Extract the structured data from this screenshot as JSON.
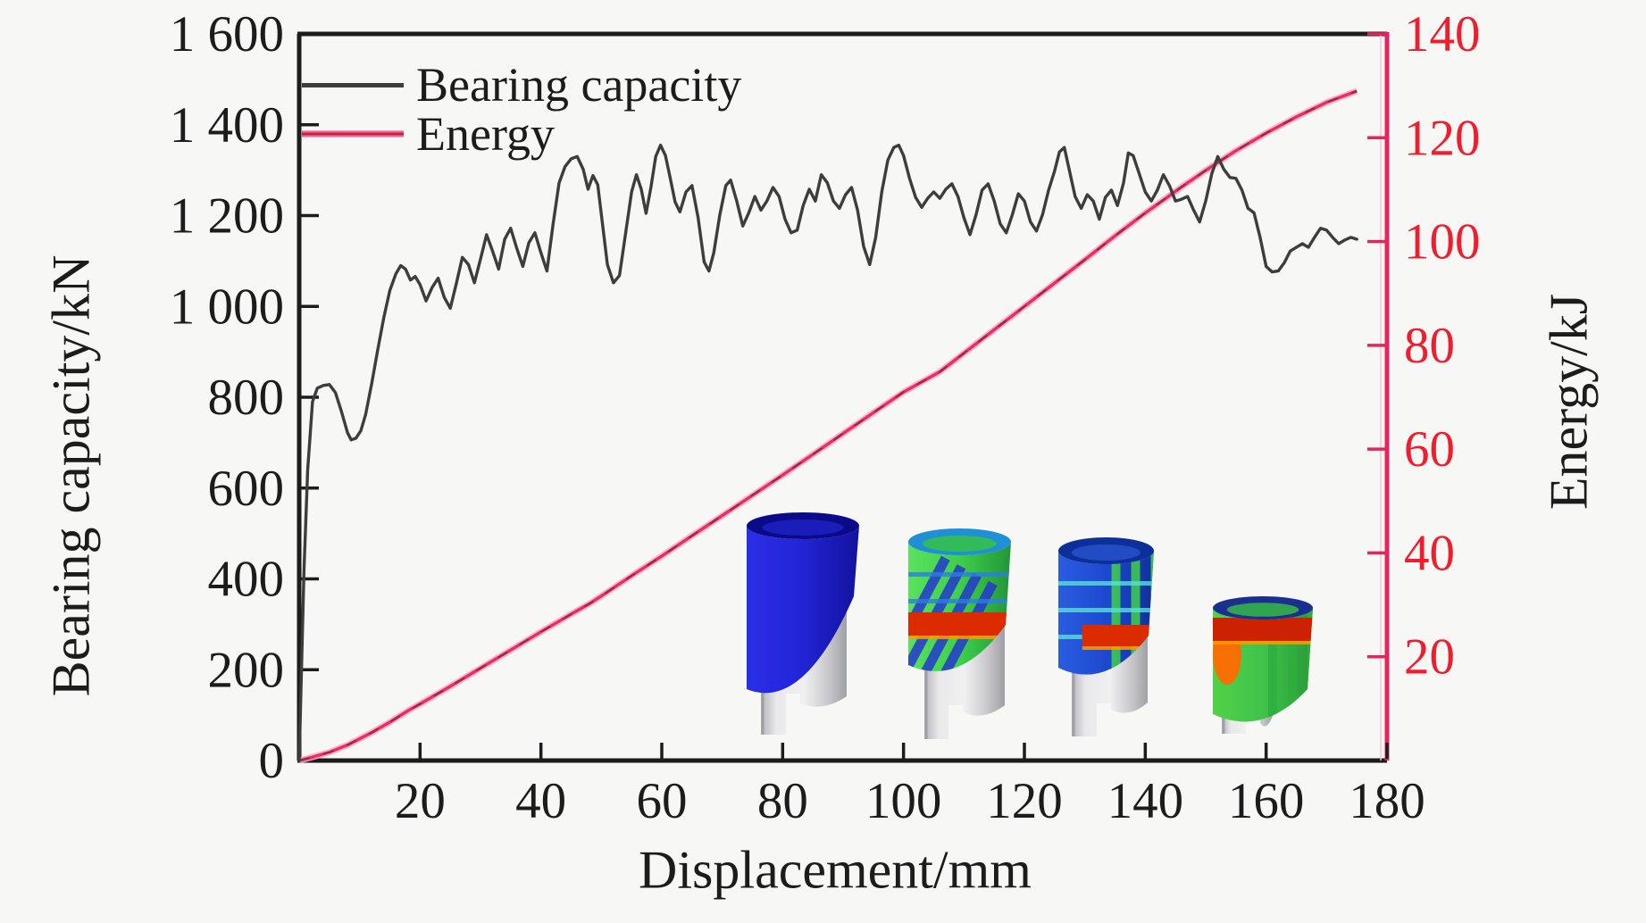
{
  "figure": {
    "background": "#f7f7f5",
    "frame_color": "#1c1c1c",
    "legend": [
      {
        "label": "Bearing capacity",
        "color": "#3d3d3d"
      },
      {
        "label": "Energy",
        "color": "#e6305f"
      }
    ],
    "axes": {
      "x": {
        "label": "Displacement/mm",
        "tick_values": [
          20,
          40,
          60,
          80,
          100,
          120,
          140,
          160,
          180
        ],
        "color": "#1c1c1c"
      },
      "y_left": {
        "label": "Bearing capacity/kN",
        "ticks": [
          {
            "v": 0,
            "label": "0"
          },
          {
            "v": 200,
            "label": "200"
          },
          {
            "v": 400,
            "label": "400"
          },
          {
            "v": 600,
            "label": "600"
          },
          {
            "v": 800,
            "label": "800"
          },
          {
            "v": 1000,
            "label": "1 000"
          },
          {
            "v": 1200,
            "label": "1 200"
          },
          {
            "v": 1400,
            "label": "1 400"
          },
          {
            "v": 1600,
            "label": "1 600"
          }
        ],
        "color": "#1c1c1c"
      },
      "y_right": {
        "label": "Energy/kJ",
        "tick_values": [
          20,
          40,
          60,
          80,
          100,
          120,
          140
        ],
        "tick_label_color": "#ee1e2e",
        "axis_color": "#e6245c"
      }
    }
  },
  "chart_data": {
    "type": "line",
    "title": "",
    "xlabel": "Displacement/mm",
    "ylabel_left": "Bearing capacity/kN",
    "ylabel_right": "Energy/kJ",
    "x_range": [
      0,
      180
    ],
    "y_left_range": [
      0,
      1600
    ],
    "y_right_range": [
      0,
      140
    ],
    "grid": false,
    "legend_position": "top-left",
    "series": [
      {
        "name": "Bearing capacity",
        "axis": "left",
        "units": "kN",
        "color": "#3d3d3d",
        "points": [
          [
            0,
            0
          ],
          [
            0.8,
            420
          ],
          [
            1.4,
            640
          ],
          [
            2.2,
            790
          ],
          [
            3,
            820
          ],
          [
            4,
            826
          ],
          [
            5,
            828
          ],
          [
            6,
            810
          ],
          [
            7,
            768
          ],
          [
            8,
            722
          ],
          [
            8.6,
            706
          ],
          [
            9.4,
            710
          ],
          [
            10.2,
            726
          ],
          [
            11,
            762
          ],
          [
            12,
            830
          ],
          [
            13,
            905
          ],
          [
            14,
            975
          ],
          [
            15,
            1035
          ],
          [
            16,
            1072
          ],
          [
            16.8,
            1090
          ],
          [
            17.6,
            1082
          ],
          [
            18.4,
            1058
          ],
          [
            19.2,
            1066
          ],
          [
            20,
            1048
          ],
          [
            21,
            1012
          ],
          [
            22,
            1042
          ],
          [
            23,
            1062
          ],
          [
            24,
            1020
          ],
          [
            25,
            996
          ],
          [
            26,
            1050
          ],
          [
            27,
            1108
          ],
          [
            28,
            1092
          ],
          [
            29,
            1052
          ],
          [
            30,
            1104
          ],
          [
            31,
            1158
          ],
          [
            32,
            1122
          ],
          [
            33,
            1082
          ],
          [
            34,
            1148
          ],
          [
            35,
            1172
          ],
          [
            36,
            1128
          ],
          [
            37,
            1088
          ],
          [
            38,
            1140
          ],
          [
            39,
            1162
          ],
          [
            40,
            1118
          ],
          [
            41,
            1078
          ],
          [
            42,
            1180
          ],
          [
            43,
            1272
          ],
          [
            44,
            1308
          ],
          [
            45,
            1325
          ],
          [
            46,
            1330
          ],
          [
            47,
            1302
          ],
          [
            47.8,
            1258
          ],
          [
            48.6,
            1288
          ],
          [
            49.4,
            1268
          ],
          [
            50.2,
            1180
          ],
          [
            51,
            1092
          ],
          [
            52,
            1052
          ],
          [
            53,
            1068
          ],
          [
            54,
            1160
          ],
          [
            55,
            1252
          ],
          [
            55.8,
            1290
          ],
          [
            56.6,
            1258
          ],
          [
            57.4,
            1205
          ],
          [
            58.2,
            1262
          ],
          [
            59,
            1330
          ],
          [
            59.8,
            1355
          ],
          [
            60.6,
            1332
          ],
          [
            61.4,
            1282
          ],
          [
            62.2,
            1230
          ],
          [
            63,
            1208
          ],
          [
            64,
            1252
          ],
          [
            65,
            1266
          ],
          [
            66,
            1196
          ],
          [
            67,
            1098
          ],
          [
            67.8,
            1078
          ],
          [
            68.6,
            1118
          ],
          [
            69.6,
            1202
          ],
          [
            70.6,
            1266
          ],
          [
            71.4,
            1278
          ],
          [
            72.4,
            1232
          ],
          [
            73.4,
            1177
          ],
          [
            74.4,
            1206
          ],
          [
            75.4,
            1242
          ],
          [
            76.4,
            1212
          ],
          [
            77.4,
            1232
          ],
          [
            78.4,
            1262
          ],
          [
            79.4,
            1242
          ],
          [
            80.4,
            1192
          ],
          [
            81.4,
            1162
          ],
          [
            82.4,
            1168
          ],
          [
            83.4,
            1222
          ],
          [
            84.4,
            1258
          ],
          [
            85.4,
            1232
          ],
          [
            86.4,
            1290
          ],
          [
            87.4,
            1272
          ],
          [
            88.4,
            1232
          ],
          [
            89.4,
            1216
          ],
          [
            90.4,
            1246
          ],
          [
            91.4,
            1262
          ],
          [
            92.4,
            1212
          ],
          [
            93.4,
            1132
          ],
          [
            94.4,
            1092
          ],
          [
            95.4,
            1152
          ],
          [
            96.4,
            1252
          ],
          [
            97.4,
            1322
          ],
          [
            98.4,
            1350
          ],
          [
            99.2,
            1355
          ],
          [
            100,
            1332
          ],
          [
            101,
            1282
          ],
          [
            102,
            1240
          ],
          [
            103,
            1218
          ],
          [
            104,
            1238
          ],
          [
            105,
            1252
          ],
          [
            106,
            1238
          ],
          [
            107,
            1258
          ],
          [
            108,
            1270
          ],
          [
            109,
            1242
          ],
          [
            110,
            1195
          ],
          [
            111,
            1158
          ],
          [
            112,
            1202
          ],
          [
            113,
            1256
          ],
          [
            114,
            1270
          ],
          [
            115,
            1232
          ],
          [
            116,
            1182
          ],
          [
            117,
            1162
          ],
          [
            118,
            1202
          ],
          [
            119,
            1248
          ],
          [
            120,
            1232
          ],
          [
            121,
            1186
          ],
          [
            122,
            1166
          ],
          [
            123,
            1202
          ],
          [
            124,
            1256
          ],
          [
            125,
            1298
          ],
          [
            125.8,
            1340
          ],
          [
            126.6,
            1350
          ],
          [
            127.4,
            1302
          ],
          [
            128.4,
            1242
          ],
          [
            129.4,
            1216
          ],
          [
            130.4,
            1246
          ],
          [
            131.4,
            1232
          ],
          [
            132.4,
            1192
          ],
          [
            133.4,
            1240
          ],
          [
            134.4,
            1256
          ],
          [
            135.4,
            1222
          ],
          [
            136.4,
            1272
          ],
          [
            137.2,
            1338
          ],
          [
            138,
            1332
          ],
          [
            139,
            1292
          ],
          [
            140,
            1252
          ],
          [
            141,
            1232
          ],
          [
            142,
            1256
          ],
          [
            143,
            1290
          ],
          [
            144,
            1266
          ],
          [
            145,
            1232
          ],
          [
            146,
            1236
          ],
          [
            147,
            1242
          ],
          [
            148,
            1212
          ],
          [
            149,
            1186
          ],
          [
            150,
            1232
          ],
          [
            151,
            1292
          ],
          [
            152,
            1330
          ],
          [
            153,
            1302
          ],
          [
            154,
            1284
          ],
          [
            155,
            1282
          ],
          [
            156,
            1256
          ],
          [
            157,
            1216
          ],
          [
            158,
            1206
          ],
          [
            159,
            1152
          ],
          [
            160,
            1088
          ],
          [
            161,
            1076
          ],
          [
            162,
            1078
          ],
          [
            163,
            1096
          ],
          [
            164,
            1122
          ],
          [
            165,
            1130
          ],
          [
            166,
            1138
          ],
          [
            167,
            1130
          ],
          [
            168,
            1152
          ],
          [
            169,
            1172
          ],
          [
            170,
            1168
          ],
          [
            171,
            1152
          ],
          [
            172,
            1138
          ],
          [
            173,
            1146
          ],
          [
            174,
            1152
          ],
          [
            175,
            1148
          ]
        ]
      },
      {
        "name": "Energy",
        "axis": "right",
        "units": "kJ",
        "color": "#e6305f",
        "points": [
          [
            0,
            0
          ],
          [
            2,
            0.6
          ],
          [
            5,
            1.6
          ],
          [
            8,
            3
          ],
          [
            10,
            4.2
          ],
          [
            12,
            5.4
          ],
          [
            15,
            7.4
          ],
          [
            18,
            9.6
          ],
          [
            20,
            10.9
          ],
          [
            25,
            14.3
          ],
          [
            30,
            17.8
          ],
          [
            35,
            21.3
          ],
          [
            40,
            24.8
          ],
          [
            45,
            28.2
          ],
          [
            48,
            30.2
          ],
          [
            50,
            31.7
          ],
          [
            55,
            35.6
          ],
          [
            60,
            39.4
          ],
          [
            65,
            43.3
          ],
          [
            70,
            47.2
          ],
          [
            75,
            51.1
          ],
          [
            80,
            55
          ],
          [
            85,
            59
          ],
          [
            90,
            63
          ],
          [
            95,
            67
          ],
          [
            100,
            71
          ],
          [
            106,
            74.9
          ],
          [
            110,
            78.5
          ],
          [
            115,
            83
          ],
          [
            120,
            87.5
          ],
          [
            125,
            92
          ],
          [
            130,
            96.5
          ],
          [
            135,
            101.1
          ],
          [
            140,
            105.5
          ],
          [
            143,
            108
          ],
          [
            146,
            110.5
          ],
          [
            150,
            113.7
          ],
          [
            155,
            117.5
          ],
          [
            160,
            120.9
          ],
          [
            165,
            124
          ],
          [
            170,
            126.8
          ],
          [
            175,
            129
          ]
        ]
      }
    ]
  },
  "insets": {
    "description": "Four finite-element deformation stages of a corrugated outer tube crushing over a grey inner tube",
    "items": [
      {
        "name": "deformation-stage-1",
        "shell_color": "blue",
        "inner_color": "grey"
      },
      {
        "name": "deformation-stage-2",
        "shell_color": "green with blue streaks and red band",
        "inner_color": "grey"
      },
      {
        "name": "deformation-stage-3",
        "shell_color": "blue with green streaks and red band",
        "inner_color": "grey"
      },
      {
        "name": "deformation-stage-4",
        "shell_color": "green with red band, fully crushed",
        "inner_color": "grey"
      }
    ]
  }
}
